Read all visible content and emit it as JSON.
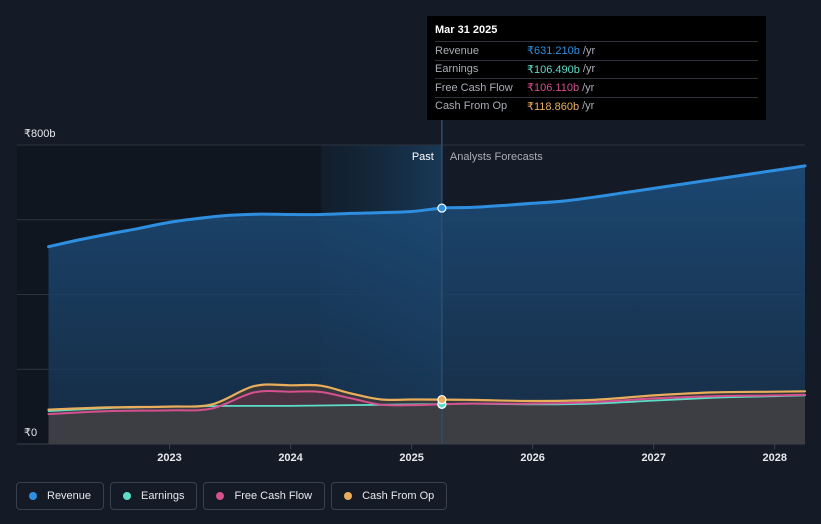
{
  "chart_data": {
    "type": "area",
    "currency": "₹",
    "ylim": [
      0,
      800
    ],
    "y_ticks": [
      {
        "value": 800,
        "label": "₹800b"
      },
      {
        "value": 0,
        "label": "₹0"
      }
    ],
    "x_ticks": [
      {
        "value": 2023,
        "label": "2023"
      },
      {
        "value": 2024,
        "label": "2024"
      },
      {
        "value": 2025,
        "label": "2025"
      },
      {
        "value": 2026,
        "label": "2026"
      },
      {
        "value": 2027,
        "label": "2027"
      },
      {
        "value": 2028,
        "label": "2028"
      }
    ],
    "xlim": [
      2021.74,
      2028.25
    ],
    "divider_x": 2025.25,
    "highlight_start_x": 2024.25,
    "past_label": "Past",
    "forecast_label": "Analysts Forecasts",
    "series": [
      {
        "name": "Revenue",
        "color": "#2e8fe0",
        "points": [
          [
            2022.0,
            528
          ],
          [
            2022.25,
            546
          ],
          [
            2022.5,
            562
          ],
          [
            2022.75,
            577
          ],
          [
            2023.0,
            593
          ],
          [
            2023.25,
            604
          ],
          [
            2023.5,
            612
          ],
          [
            2023.75,
            615
          ],
          [
            2024.0,
            614
          ],
          [
            2024.25,
            614
          ],
          [
            2024.5,
            617
          ],
          [
            2024.75,
            619
          ],
          [
            2025.0,
            622
          ],
          [
            2025.25,
            631.21
          ],
          [
            2025.5,
            633
          ],
          [
            2025.75,
            638
          ],
          [
            2026.0,
            644
          ],
          [
            2026.25,
            650
          ],
          [
            2026.5,
            660
          ],
          [
            2026.75,
            672
          ],
          [
            2027.0,
            684
          ],
          [
            2027.25,
            696
          ],
          [
            2027.5,
            708
          ],
          [
            2027.75,
            720
          ],
          [
            2028.0,
            732
          ],
          [
            2028.25,
            744
          ]
        ]
      },
      {
        "name": "Earnings",
        "color": "#5ddcc8",
        "points": [
          [
            2022.0,
            88
          ],
          [
            2022.5,
            96
          ],
          [
            2023.0,
            100
          ],
          [
            2023.5,
            102
          ],
          [
            2024.0,
            102
          ],
          [
            2024.25,
            103
          ],
          [
            2024.5,
            104
          ],
          [
            2024.75,
            105
          ],
          [
            2025.0,
            106
          ],
          [
            2025.25,
            106.49
          ],
          [
            2025.5,
            108
          ],
          [
            2026.0,
            106
          ],
          [
            2026.5,
            108
          ],
          [
            2027.0,
            116
          ],
          [
            2027.5,
            124
          ],
          [
            2027.75,
            126
          ],
          [
            2028.0,
            128
          ],
          [
            2028.25,
            130
          ]
        ]
      },
      {
        "name": "Free Cash Flow",
        "color": "#d4508e",
        "points": [
          [
            2022.0,
            80
          ],
          [
            2022.5,
            88
          ],
          [
            2023.0,
            90
          ],
          [
            2023.35,
            95
          ],
          [
            2023.7,
            138
          ],
          [
            2024.0,
            140
          ],
          [
            2024.25,
            139
          ],
          [
            2024.5,
            122
          ],
          [
            2024.75,
            105
          ],
          [
            2025.0,
            104
          ],
          [
            2025.25,
            106.11
          ],
          [
            2025.5,
            108
          ],
          [
            2026.0,
            108
          ],
          [
            2026.5,
            112
          ],
          [
            2027.0,
            122
          ],
          [
            2027.5,
            128
          ],
          [
            2028.0,
            130
          ],
          [
            2028.25,
            132
          ]
        ]
      },
      {
        "name": "Cash From Op",
        "color": "#e8ae5c",
        "points": [
          [
            2022.0,
            92
          ],
          [
            2022.5,
            98
          ],
          [
            2023.0,
            100
          ],
          [
            2023.35,
            106
          ],
          [
            2023.7,
            155
          ],
          [
            2024.0,
            157
          ],
          [
            2024.25,
            156
          ],
          [
            2024.5,
            135
          ],
          [
            2024.75,
            119
          ],
          [
            2025.0,
            119
          ],
          [
            2025.25,
            118.86
          ],
          [
            2025.5,
            118
          ],
          [
            2026.0,
            115
          ],
          [
            2026.5,
            118
          ],
          [
            2027.0,
            130
          ],
          [
            2027.5,
            138
          ],
          [
            2028.0,
            140
          ],
          [
            2028.25,
            141
          ]
        ]
      }
    ]
  },
  "tooltip": {
    "date": "Mar 31 2025",
    "rows": [
      {
        "label": "Revenue",
        "value": "₹631.210b",
        "unit": "/yr",
        "color": "#2e8fe0"
      },
      {
        "label": "Earnings",
        "value": "₹106.490b",
        "unit": "/yr",
        "color": "#5ddcc8"
      },
      {
        "label": "Free Cash Flow",
        "value": "₹106.110b",
        "unit": "/yr",
        "color": "#d4508e"
      },
      {
        "label": "Cash From Op",
        "value": "₹118.860b",
        "unit": "/yr",
        "color": "#e8ae5c"
      }
    ]
  },
  "legend": [
    {
      "label": "Revenue",
      "color": "#2e8fe0"
    },
    {
      "label": "Earnings",
      "color": "#5ddcc8"
    },
    {
      "label": "Free Cash Flow",
      "color": "#d4508e"
    },
    {
      "label": "Cash From Op",
      "color": "#e8ae5c"
    }
  ]
}
